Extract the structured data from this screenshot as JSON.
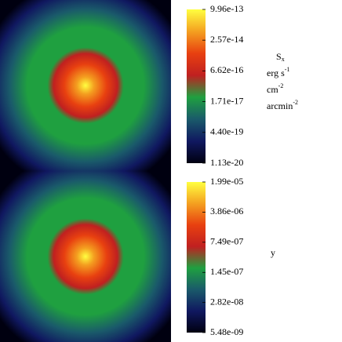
{
  "chart_data": [
    {
      "type": "image",
      "colormap": [
        "#000010",
        "#101860",
        "#1a5a6a",
        "#1fa040",
        "#c02020",
        "#e84010",
        "#f4a020",
        "#ffff40"
      ],
      "zscale": "log",
      "zlim": [
        1.13e-20,
        9.96e-13
      ],
      "zticks": [
        9.96e-13,
        2.57e-14,
        6.62e-16,
        1.71e-17,
        {
          "value": 4.4e-19,
          "label": "4.40e-19"
        },
        1.13e-20
      ],
      "colorbar_label": [
        {
          "text": "S",
          "sub": "x"
        },
        {
          "text": "erg s",
          "sup": "-1"
        },
        {
          "text": "cm",
          "sup": "-2"
        },
        {
          "text": "arcmin",
          "sup": "-2"
        }
      ]
    },
    {
      "type": "image",
      "colormap": [
        "#000010",
        "#101860",
        "#1a5a6a",
        "#1fa040",
        "#c02020",
        "#e84010",
        "#f4a020",
        "#ffff40"
      ],
      "zscale": "log",
      "zlim": [
        5.48e-09,
        1.99e-05
      ],
      "zticks": [
        {
          "value": 1.99e-05,
          "label": "1.99e-05"
        },
        {
          "value": 3.86e-06,
          "label": "3.86e-06"
        },
        {
          "value": 7.49e-07,
          "label": "7.49e-07"
        },
        {
          "value": 1.45e-07,
          "label": "1.45e-07"
        },
        {
          "value": 2.82e-08,
          "label": "2.82e-08"
        },
        {
          "value": 5.48e-09,
          "label": "5.48e-09"
        }
      ],
      "colorbar_label": [
        {
          "text": "y"
        }
      ]
    }
  ]
}
